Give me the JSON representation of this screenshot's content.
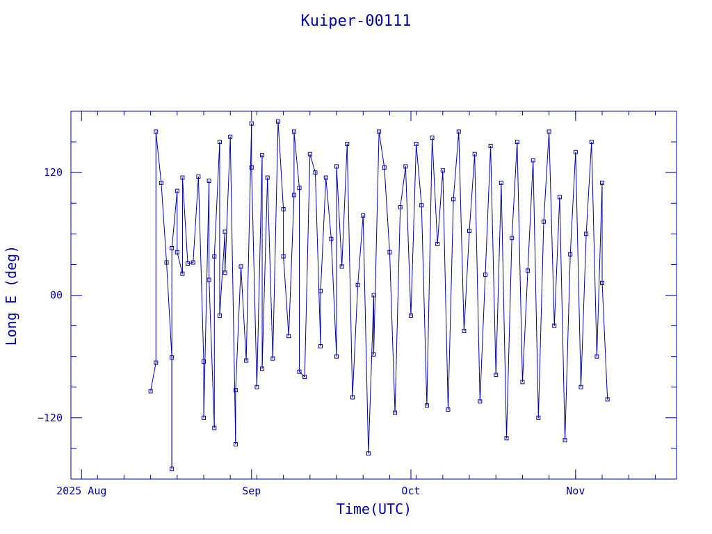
{
  "colors": {
    "plot": "#0000aa",
    "background": "#ffffff"
  },
  "chart_data": {
    "type": "line",
    "title": "Kuiper-00111",
    "xlabel": "Time(UTC)",
    "ylabel": "Long E (deg)",
    "x_ticks": [
      {
        "date": "2025-07-31",
        "label": "2025 Aug"
      },
      {
        "date": "2025-09-01",
        "label": "Sep"
      },
      {
        "date": "2025-10-01",
        "label": "Oct"
      },
      {
        "date": "2025-11-01",
        "label": "Nov"
      }
    ],
    "y_ticks": [
      {
        "value": -120,
        "label": "−120"
      },
      {
        "value": 0,
        "label": "00"
      },
      {
        "value": 120,
        "label": "120"
      }
    ],
    "xlim": [
      "2025-07-29",
      "2025-11-20"
    ],
    "ylim": [
      -180,
      180
    ],
    "markers": "square",
    "grid": false,
    "legend": "none",
    "series": [
      {
        "points": [
          [
            "2025-08-13",
            -94
          ],
          [
            "2025-08-14",
            -66
          ],
          [
            "2025-08-14",
            160
          ],
          [
            "2025-08-15",
            110
          ],
          [
            "2025-08-16",
            32
          ],
          [
            "2025-08-17",
            -61
          ],
          [
            "2025-08-17",
            -170
          ],
          [
            "2025-08-17",
            46
          ],
          [
            "2025-08-18",
            102
          ],
          [
            "2025-08-18",
            42
          ],
          [
            "2025-08-19",
            21
          ],
          [
            "2025-08-19",
            115
          ],
          [
            "2025-08-20",
            31
          ],
          [
            "2025-08-21",
            32
          ],
          [
            "2025-08-22",
            116
          ],
          [
            "2025-08-23",
            -65
          ],
          [
            "2025-08-23",
            -120
          ],
          [
            "2025-08-24",
            112
          ],
          [
            "2025-08-24",
            15
          ],
          [
            "2025-08-25",
            -130
          ],
          [
            "2025-08-25",
            38
          ],
          [
            "2025-08-26",
            150
          ],
          [
            "2025-08-26",
            -20
          ],
          [
            "2025-08-27",
            62
          ],
          [
            "2025-08-27",
            22
          ],
          [
            "2025-08-28",
            155
          ],
          [
            "2025-08-29",
            -146
          ],
          [
            "2025-08-29",
            -93
          ],
          [
            "2025-08-30",
            28
          ],
          [
            "2025-08-31",
            -64
          ],
          [
            "2025-09-01",
            168
          ],
          [
            "2025-09-01",
            125
          ],
          [
            "2025-09-02",
            -90
          ],
          [
            "2025-09-03",
            137
          ],
          [
            "2025-09-03",
            -72
          ],
          [
            "2025-09-04",
            115
          ],
          [
            "2025-09-05",
            -62
          ],
          [
            "2025-09-06",
            170
          ],
          [
            "2025-09-07",
            84
          ],
          [
            "2025-09-07",
            38
          ],
          [
            "2025-09-08",
            -40
          ],
          [
            "2025-09-09",
            98
          ],
          [
            "2025-09-09",
            160
          ],
          [
            "2025-09-10",
            105
          ],
          [
            "2025-09-10",
            -75
          ],
          [
            "2025-09-11",
            -80
          ],
          [
            "2025-09-12",
            138
          ],
          [
            "2025-09-13",
            120
          ],
          [
            "2025-09-14",
            -50
          ],
          [
            "2025-09-14",
            4
          ],
          [
            "2025-09-15",
            115
          ],
          [
            "2025-09-16",
            55
          ],
          [
            "2025-09-17",
            -60
          ],
          [
            "2025-09-17",
            126
          ],
          [
            "2025-09-18",
            28
          ],
          [
            "2025-09-19",
            148
          ],
          [
            "2025-09-20",
            -100
          ],
          [
            "2025-09-21",
            10
          ],
          [
            "2025-09-22",
            78
          ],
          [
            "2025-09-23",
            -155
          ],
          [
            "2025-09-24",
            0
          ],
          [
            "2025-09-24",
            -58
          ],
          [
            "2025-09-25",
            160
          ],
          [
            "2025-09-26",
            125
          ],
          [
            "2025-09-27",
            42
          ],
          [
            "2025-09-28",
            -115
          ],
          [
            "2025-09-29",
            86
          ],
          [
            "2025-09-30",
            126
          ],
          [
            "2025-10-01",
            -20
          ],
          [
            "2025-10-02",
            148
          ],
          [
            "2025-10-03",
            88
          ],
          [
            "2025-10-04",
            -108
          ],
          [
            "2025-10-05",
            154
          ],
          [
            "2025-10-06",
            50
          ],
          [
            "2025-10-07",
            122
          ],
          [
            "2025-10-08",
            -112
          ],
          [
            "2025-10-09",
            94
          ],
          [
            "2025-10-10",
            160
          ],
          [
            "2025-10-11",
            -35
          ],
          [
            "2025-10-12",
            63
          ],
          [
            "2025-10-13",
            138
          ],
          [
            "2025-10-14",
            -104
          ],
          [
            "2025-10-15",
            20
          ],
          [
            "2025-10-16",
            146
          ],
          [
            "2025-10-17",
            -78
          ],
          [
            "2025-10-18",
            110
          ],
          [
            "2025-10-19",
            -140
          ],
          [
            "2025-10-20",
            56
          ],
          [
            "2025-10-21",
            150
          ],
          [
            "2025-10-22",
            -85
          ],
          [
            "2025-10-23",
            24
          ],
          [
            "2025-10-24",
            132
          ],
          [
            "2025-10-25",
            -120
          ],
          [
            "2025-10-26",
            72
          ],
          [
            "2025-10-27",
            160
          ],
          [
            "2025-10-28",
            -30
          ],
          [
            "2025-10-29",
            96
          ],
          [
            "2025-10-30",
            -142
          ],
          [
            "2025-10-31",
            40
          ],
          [
            "2025-11-01",
            140
          ],
          [
            "2025-11-02",
            -90
          ],
          [
            "2025-11-03",
            60
          ],
          [
            "2025-11-04",
            150
          ],
          [
            "2025-11-05",
            -60
          ],
          [
            "2025-11-06",
            110
          ],
          [
            "2025-11-06",
            12
          ],
          [
            "2025-11-07",
            -102
          ]
        ]
      }
    ]
  }
}
